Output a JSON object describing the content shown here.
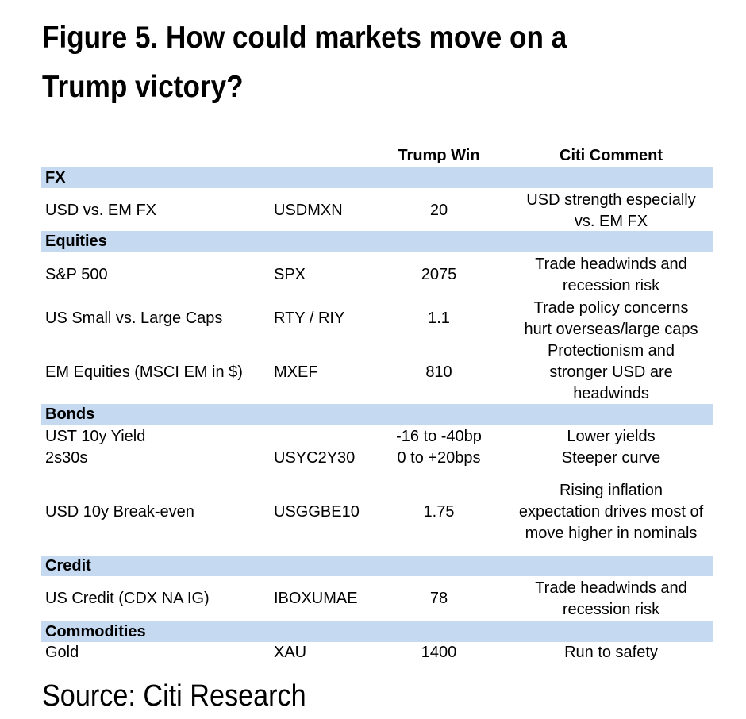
{
  "title": [
    "Figure 5. How could markets move on a",
    "Trump victory?"
  ],
  "table": {
    "columns": [
      "Trump Win",
      "Citi Comment"
    ],
    "sections": [
      {
        "name": "FX",
        "rows": [
          {
            "asset": "USD vs. EM FX",
            "ticker": "USDMXN",
            "trump_win": "20",
            "comment": [
              "USD strength especially",
              "vs. EM FX"
            ]
          }
        ]
      },
      {
        "name": "Equities",
        "rows": [
          {
            "asset": "S&P 500",
            "ticker": "SPX",
            "trump_win": "2075",
            "comment": [
              "Trade headwinds and",
              "recession risk"
            ]
          },
          {
            "asset": "US Small vs. Large Caps",
            "ticker": "RTY / RIY",
            "trump_win": "1.1",
            "comment": [
              "Trade policy concerns",
              "hurt overseas/large caps"
            ]
          },
          {
            "asset": "EM Equities (MSCI EM in $)",
            "ticker": "MXEF",
            "trump_win": "810",
            "comment": [
              "Protectionism and",
              "stronger USD are",
              "headwinds"
            ]
          }
        ]
      },
      {
        "name": "Bonds",
        "rows": [
          {
            "asset": "UST 10y Yield",
            "trump_win": "-16 to -40bp",
            "comment": [
              "Lower yields"
            ]
          },
          {
            "asset": "2s30s",
            "ticker": "USYC2Y30",
            "trump_win": "0 to +20bps",
            "comment": [
              "Steeper curve"
            ]
          },
          {
            "asset": "USD 10y Break-even",
            "ticker": "USGGBE10",
            "trump_win": "1.75",
            "comment": [
              "Rising inflation",
              "expectation drives most of",
              "move higher in nominals"
            ]
          }
        ]
      },
      {
        "name": "Credit",
        "rows": [
          {
            "asset": "US Credit (CDX NA IG)",
            "ticker": "IBOXUMAE",
            "trump_win": "78",
            "comment": [
              "Trade headwinds and",
              "recession risk"
            ]
          }
        ]
      },
      {
        "name": "Commodities",
        "rows": [
          {
            "asset": "Gold",
            "ticker": "XAU",
            "trump_win": "1400",
            "comment": [
              "Run to safety"
            ]
          }
        ]
      }
    ]
  },
  "source": "Source: Citi Research"
}
